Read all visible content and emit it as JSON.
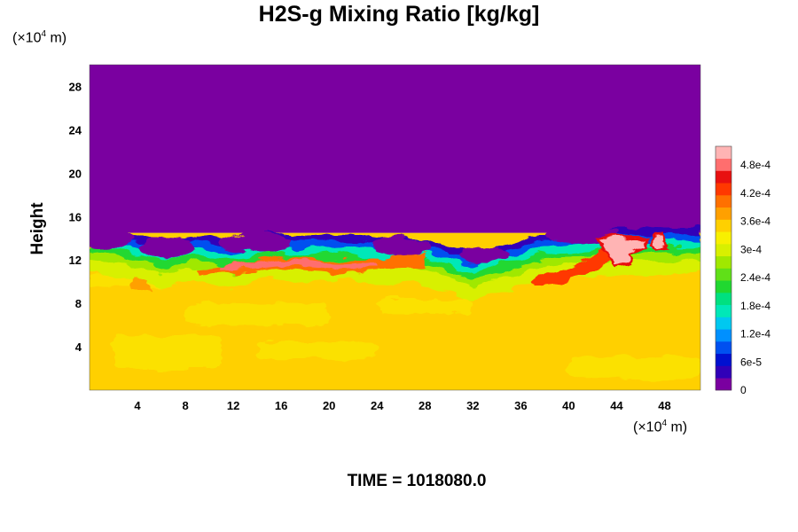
{
  "chart_data": {
    "type": "heatmap",
    "title": "H2S-g Mixing Ratio [kg/kg]",
    "ylabel": "Height",
    "y_unit": [
      "(×10",
      "4",
      " m)"
    ],
    "x_unit": [
      "(×10",
      "4",
      " m)"
    ],
    "footer": "TIME = 1018080.0",
    "xlim": [
      0,
      51
    ],
    "ylim": [
      0,
      30
    ],
    "x_ticks": [
      4,
      8,
      12,
      16,
      20,
      24,
      28,
      32,
      36,
      40,
      44,
      48
    ],
    "y_ticks": [
      4,
      8,
      12,
      16,
      20,
      24,
      28
    ],
    "colorbar": {
      "min": 0,
      "max": 0.00052,
      "labels": [
        "0",
        "6e-5",
        "1.2e-4",
        "1.8e-4",
        "2.4e-4",
        "3e-4",
        "3.6e-4",
        "4.2e-4",
        "4.8e-4"
      ],
      "label_values": [
        0,
        6e-05,
        0.00012,
        0.00018,
        0.00024,
        0.0003,
        0.00036,
        0.00042,
        0.00048
      ],
      "colors": [
        "#7a00a0",
        "#3000b8",
        "#0010d0",
        "#0050f0",
        "#0090ff",
        "#00c8f0",
        "#00e8b8",
        "#00e080",
        "#20d830",
        "#60e018",
        "#a0e800",
        "#d8f000",
        "#f8f000",
        "#ffd000",
        "#ffa000",
        "#ff7000",
        "#ff3800",
        "#e81010",
        "#ff6e6e",
        "#ffb4b4"
      ]
    },
    "regions": {
      "upper_value": 0,
      "lower_value": 0.00035,
      "interface_height": 14.5,
      "enriched_layer": "about 4.2e-4 to 4.8e-4 near heights 10-12, x 8-28 and x 38-44",
      "peak_patches": "above 4.8e-4 near x 43-47, height 12-14"
    }
  }
}
